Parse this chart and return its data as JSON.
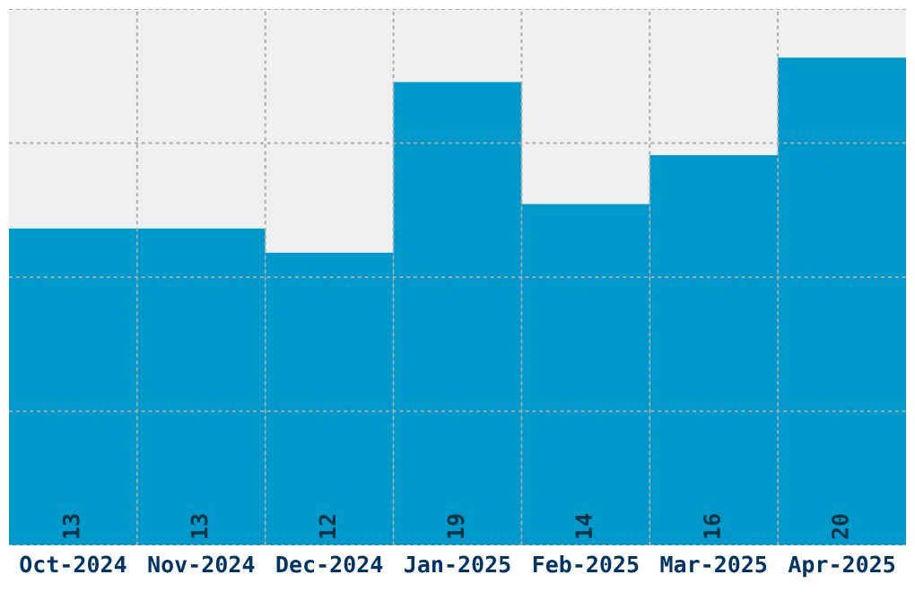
{
  "chart_data": {
    "type": "bar",
    "categories": [
      "Oct-2024",
      "Nov-2024",
      "Dec-2024",
      "Jan-2025",
      "Feb-2025",
      "Mar-2025",
      "Apr-2025"
    ],
    "values": [
      13,
      13,
      12,
      19,
      14,
      16,
      20
    ],
    "color": "#0099cc",
    "data_labels": true,
    "grid": true,
    "ylim": [
      0,
      22
    ],
    "yticks": [
      {
        "value": 0,
        "label": null
      },
      {
        "value": 5.5,
        "label": null
      },
      {
        "value": 11,
        "label": null
      },
      {
        "value": 16.5,
        "label": null
      },
      {
        "value": 22,
        "label": null
      }
    ],
    "tick_labels": "x"
  }
}
